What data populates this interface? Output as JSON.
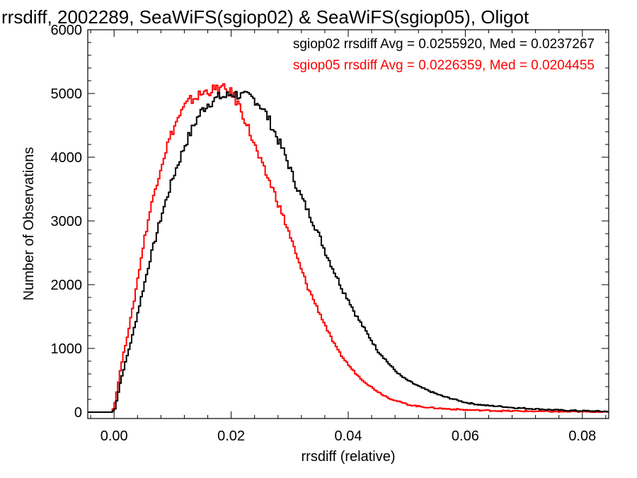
{
  "chart_data": {
    "type": "line",
    "title": "rrsdiff, 2002289, SeaWiFS(sgiop02) & SeaWiFS(sgiop05), Oligot",
    "xlabel": "rrsdiff (relative)",
    "ylabel": "Number of Observations",
    "xlim": [
      -0.0045,
      0.0845
    ],
    "ylim": [
      -100,
      6000
    ],
    "xticks": [
      0.0,
      0.02,
      0.04,
      0.06,
      0.08
    ],
    "xtick_labels": [
      "0.00",
      "0.02",
      "0.04",
      "0.06",
      "0.08"
    ],
    "yticks": [
      0,
      1000,
      2000,
      3000,
      4000,
      5000,
      6000
    ],
    "ytick_labels": [
      "0",
      "1000",
      "2000",
      "3000",
      "4000",
      "5000",
      "6000"
    ],
    "grid": false,
    "legend_position": "top-right",
    "legend": [
      {
        "text": "sgiop02 rrsdiff Avg = 0.0255920, Med = 0.0237267",
        "color": "#000000"
      },
      {
        "text": "sgiop05 rrsdiff Avg = 0.0226359, Med = 0.0204455",
        "color": "#ff0000"
      }
    ],
    "series": [
      {
        "color": "#000000",
        "x": [
          -0.0045,
          -0.0005,
          0.0,
          0.001,
          0.002,
          0.003,
          0.004,
          0.005,
          0.006,
          0.007,
          0.008,
          0.009,
          0.01,
          0.011,
          0.012,
          0.013,
          0.014,
          0.015,
          0.016,
          0.017,
          0.018,
          0.019,
          0.02,
          0.021,
          0.022,
          0.023,
          0.024,
          0.025,
          0.026,
          0.027,
          0.028,
          0.029,
          0.03,
          0.031,
          0.032,
          0.033,
          0.034,
          0.035,
          0.036,
          0.037,
          0.038,
          0.039,
          0.04,
          0.041,
          0.042,
          0.043,
          0.044,
          0.045,
          0.046,
          0.047,
          0.048,
          0.049,
          0.05,
          0.052,
          0.054,
          0.056,
          0.058,
          0.06,
          0.062,
          0.064,
          0.066,
          0.068,
          0.07,
          0.072,
          0.074,
          0.076,
          0.078,
          0.08,
          0.082,
          0.084
        ],
        "y": [
          0,
          0,
          50,
          500,
          850,
          1200,
          1600,
          2000,
          2400,
          2750,
          3100,
          3400,
          3700,
          3950,
          4200,
          4400,
          4600,
          4750,
          4850,
          4900,
          4950,
          4950,
          5000,
          4980,
          4950,
          4950,
          4900,
          4800,
          4650,
          4450,
          4250,
          4050,
          3800,
          3550,
          3350,
          3150,
          2950,
          2750,
          2500,
          2300,
          2100,
          1900,
          1750,
          1550,
          1400,
          1250,
          1100,
          950,
          850,
          740,
          640,
          560,
          500,
          400,
          320,
          250,
          200,
          150,
          120,
          100,
          90,
          70,
          60,
          50,
          40,
          30,
          25,
          20,
          15,
          10
        ]
      },
      {
        "color": "#ff0000",
        "x": [
          -0.0045,
          -0.0005,
          0.0,
          0.001,
          0.002,
          0.003,
          0.004,
          0.005,
          0.006,
          0.007,
          0.008,
          0.009,
          0.01,
          0.011,
          0.012,
          0.013,
          0.014,
          0.015,
          0.016,
          0.017,
          0.018,
          0.019,
          0.02,
          0.021,
          0.022,
          0.023,
          0.024,
          0.025,
          0.026,
          0.027,
          0.028,
          0.029,
          0.03,
          0.031,
          0.032,
          0.033,
          0.034,
          0.035,
          0.036,
          0.037,
          0.038,
          0.039,
          0.04,
          0.041,
          0.042,
          0.043,
          0.044,
          0.045,
          0.046,
          0.047,
          0.048,
          0.049,
          0.05,
          0.052,
          0.054,
          0.056,
          0.058,
          0.06,
          0.062,
          0.064,
          0.066,
          0.068,
          0.07,
          0.072,
          0.074,
          0.076,
          0.078,
          0.08,
          0.082,
          0.084
        ],
        "y": [
          0,
          0,
          150,
          700,
          1150,
          1600,
          2150,
          2700,
          3150,
          3550,
          3900,
          4200,
          4450,
          4650,
          4800,
          4900,
          4950,
          5000,
          5050,
          5050,
          5080,
          5050,
          5000,
          4850,
          4650,
          4400,
          4150,
          3900,
          3700,
          3500,
          3250,
          3000,
          2750,
          2450,
          2200,
          1950,
          1750,
          1550,
          1350,
          1150,
          980,
          850,
          730,
          620,
          530,
          450,
          380,
          320,
          260,
          215,
          180,
          150,
          120,
          90,
          70,
          55,
          45,
          35,
          30,
          25,
          20,
          18,
          15,
          12,
          10,
          8,
          6,
          5,
          4,
          3
        ]
      }
    ]
  }
}
